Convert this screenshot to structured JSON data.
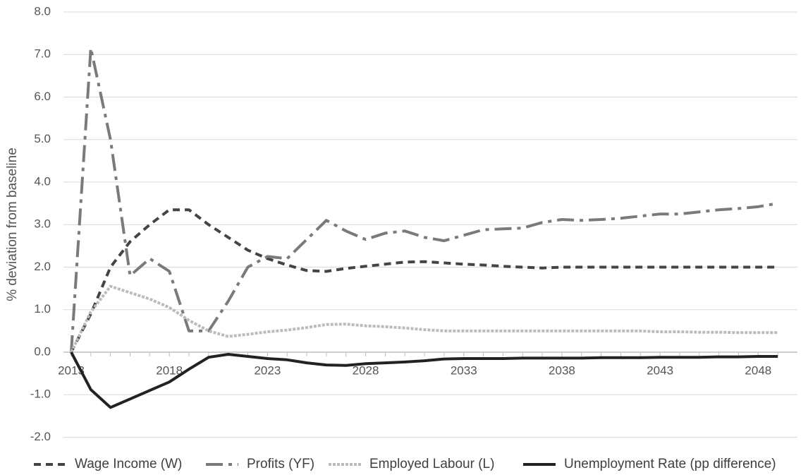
{
  "chart_data": {
    "type": "line",
    "y_label": "% deviation from baseline",
    "x": [
      2013,
      2014,
      2015,
      2016,
      2017,
      2018,
      2019,
      2020,
      2021,
      2022,
      2023,
      2024,
      2025,
      2026,
      2027,
      2028,
      2029,
      2030,
      2031,
      2032,
      2033,
      2034,
      2035,
      2036,
      2037,
      2038,
      2039,
      2040,
      2041,
      2042,
      2043,
      2044,
      2045,
      2046,
      2047,
      2048,
      2049
    ],
    "xlim": [
      2013,
      2050
    ],
    "xticks": [
      2013,
      2018,
      2023,
      2028,
      2033,
      2038,
      2043,
      2048
    ],
    "ylim": [
      -2,
      8
    ],
    "yticks": [
      {
        "value": -2,
        "label": "-2.0"
      },
      {
        "value": -1,
        "label": "-1.0"
      },
      {
        "value": 0,
        "label": "0.0"
      },
      {
        "value": 1,
        "label": "1.0"
      },
      {
        "value": 2,
        "label": "2.0"
      },
      {
        "value": 3,
        "label": "3.0"
      },
      {
        "value": 4,
        "label": "4.0"
      },
      {
        "value": 5,
        "label": "5.0"
      },
      {
        "value": 6,
        "label": "6.0"
      },
      {
        "value": 7,
        "label": "7.0"
      },
      {
        "value": 8,
        "label": "8.0"
      }
    ],
    "grid": true,
    "legend": "bottom",
    "series": [
      {
        "name": "Wage Income (W)",
        "color": "#444444",
        "dash": "10,7",
        "values": [
          0,
          0.9,
          2.0,
          2.6,
          3.0,
          3.35,
          3.35,
          3.0,
          2.7,
          2.4,
          2.2,
          2.05,
          1.92,
          1.9,
          1.97,
          2.02,
          2.07,
          2.12,
          2.13,
          2.1,
          2.07,
          2.05,
          2.02,
          2.0,
          1.98,
          2.0,
          2.0,
          2.0,
          2.0,
          2.0,
          2.0,
          2.0,
          2.0,
          2.0,
          2.0,
          2.0,
          2.0
        ]
      },
      {
        "name": "Profits (YF)",
        "color": "#7a7a7a",
        "dash": "24,8,5,8",
        "values": [
          0,
          7.15,
          5.0,
          1.8,
          2.2,
          1.9,
          0.5,
          0.5,
          1.2,
          2.0,
          2.25,
          2.2,
          2.65,
          3.1,
          2.85,
          2.65,
          2.8,
          2.85,
          2.7,
          2.62,
          2.75,
          2.88,
          2.9,
          2.92,
          3.05,
          3.12,
          3.1,
          3.12,
          3.15,
          3.2,
          3.25,
          3.25,
          3.3,
          3.35,
          3.38,
          3.42,
          3.5
        ]
      },
      {
        "name": "Employed Labour (L)",
        "color": "#bbbbbb",
        "dash": "4,2",
        "values": [
          0,
          0.95,
          1.55,
          1.4,
          1.25,
          1.05,
          0.75,
          0.5,
          0.37,
          0.42,
          0.48,
          0.52,
          0.58,
          0.65,
          0.66,
          0.62,
          0.6,
          0.57,
          0.53,
          0.5,
          0.5,
          0.5,
          0.5,
          0.5,
          0.5,
          0.5,
          0.5,
          0.5,
          0.5,
          0.5,
          0.48,
          0.48,
          0.47,
          0.47,
          0.46,
          0.46,
          0.46
        ]
      },
      {
        "name": "Unemployment Rate (pp difference)",
        "color": "#222222",
        "dash": "",
        "values": [
          0,
          -0.88,
          -1.3,
          -1.1,
          -0.9,
          -0.7,
          -0.4,
          -0.12,
          -0.05,
          -0.1,
          -0.15,
          -0.18,
          -0.25,
          -0.3,
          -0.31,
          -0.27,
          -0.25,
          -0.23,
          -0.2,
          -0.16,
          -0.15,
          -0.15,
          -0.15,
          -0.14,
          -0.14,
          -0.14,
          -0.14,
          -0.13,
          -0.13,
          -0.13,
          -0.12,
          -0.12,
          -0.12,
          -0.11,
          -0.11,
          -0.1,
          -0.1
        ]
      }
    ]
  }
}
